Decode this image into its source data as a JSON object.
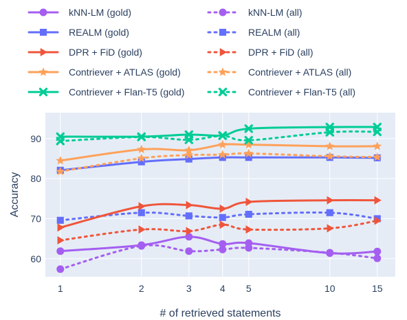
{
  "chart_data": {
    "type": "line",
    "xlabel": "# of retrieved statements",
    "ylabel": "Accuracy",
    "x": [
      1,
      2,
      3,
      4,
      5,
      10,
      15
    ],
    "x_scale": "log",
    "xlim": [
      0.88,
      17.5
    ],
    "ylim": [
      55.5,
      96.5
    ],
    "y_ticks": [
      60,
      70,
      80,
      90
    ],
    "grid": true,
    "legend_position": "top",
    "series": [
      {
        "name": "kNN-LM (gold)",
        "color": "#a45ef0",
        "dash": "solid",
        "marker": "circle",
        "values": [
          61.9,
          63.4,
          65.5,
          63.7,
          63.9,
          61.4,
          61.8
        ]
      },
      {
        "name": "kNN-LM (all)",
        "color": "#a45ef0",
        "dash": "dot",
        "marker": "circle",
        "values": [
          57.4,
          63.2,
          61.9,
          62.3,
          62.7,
          61.5,
          60.1
        ]
      },
      {
        "name": "REALM (gold)",
        "color": "#636efa",
        "dash": "solid",
        "marker": "square",
        "values": [
          82.1,
          84.2,
          84.9,
          85.3,
          85.3,
          85.3,
          85.2
        ]
      },
      {
        "name": "REALM (all)",
        "color": "#636efa",
        "dash": "dot",
        "marker": "square",
        "values": [
          69.6,
          71.5,
          70.7,
          70.3,
          71.1,
          71.5,
          70.0
        ]
      },
      {
        "name": "DPR + FiD (gold)",
        "color": "#ef553b",
        "dash": "solid",
        "marker": "triangle-right",
        "values": [
          67.8,
          73.1,
          73.4,
          72.5,
          74.2,
          74.6,
          74.6
        ]
      },
      {
        "name": "DPR + FiD (all)",
        "color": "#ef553b",
        "dash": "dot",
        "marker": "triangle-right",
        "values": [
          64.6,
          67.3,
          66.9,
          68.5,
          67.3,
          67.6,
          69.5
        ]
      },
      {
        "name": "Contriever + ATLAS (gold)",
        "color": "#fea15a",
        "dash": "solid",
        "marker": "star",
        "values": [
          84.5,
          87.3,
          87.1,
          88.5,
          88.5,
          88.1,
          88.1
        ]
      },
      {
        "name": "Contriever + ATLAS (all)",
        "color": "#fea15a",
        "dash": "dot",
        "marker": "star",
        "values": [
          81.8,
          85.1,
          85.9,
          86.0,
          86.3,
          85.6,
          85.4
        ]
      },
      {
        "name": "Contriever + Flan-T5 (gold)",
        "color": "#00cc96",
        "dash": "solid",
        "marker": "x",
        "values": [
          90.5,
          90.5,
          91.0,
          90.8,
          92.5,
          92.9,
          92.9
        ]
      },
      {
        "name": "Contriever + Flan-T5 (all)",
        "color": "#00cc96",
        "dash": "dot",
        "marker": "x",
        "values": [
          89.4,
          90.4,
          89.7,
          90.7,
          89.6,
          91.6,
          91.7
        ]
      }
    ]
  }
}
